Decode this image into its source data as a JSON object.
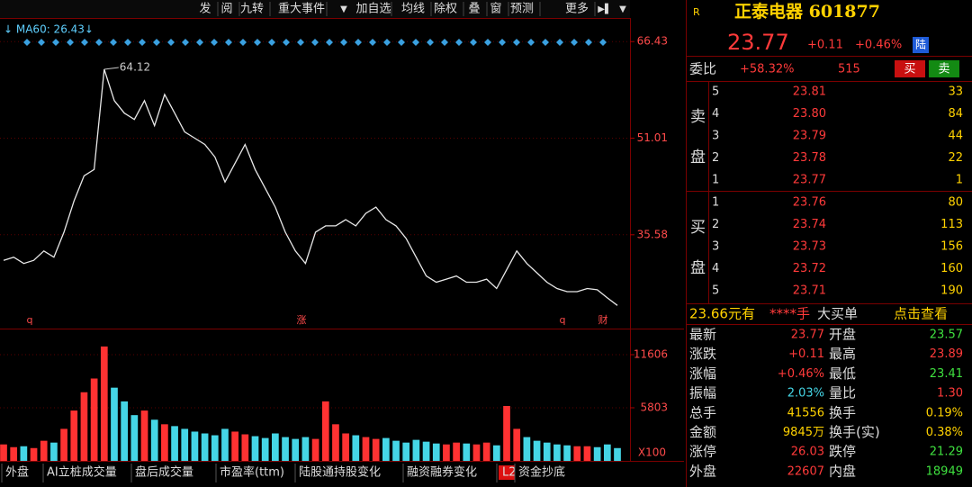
{
  "toolbar": [
    "发",
    "阅",
    "九转",
    "重大事件",
    "加自选",
    "均线",
    "除权",
    "叠",
    "窗",
    "预测",
    "更多"
  ],
  "price_chart": {
    "ma_label": "↓ MA60: 26.43↓",
    "max_label": "64.12",
    "ylim": [
      20.6,
      70.2
    ],
    "yticks": [
      35.58,
      51.01,
      66.43
    ],
    "values": [
      31.5,
      32,
      31,
      31.5,
      33,
      32,
      36,
      41,
      45,
      46,
      62,
      57,
      55,
      54,
      57,
      53,
      58,
      55,
      52,
      51,
      50,
      48,
      44,
      47,
      50,
      46,
      43,
      40,
      36,
      33,
      31,
      36,
      37,
      37,
      38,
      37,
      39,
      40,
      38,
      37,
      35,
      32,
      29,
      28,
      28.5,
      29,
      28,
      28,
      28.5,
      27,
      30,
      33,
      31,
      29.5,
      28,
      27,
      26.5,
      26.5,
      27,
      26.8,
      25.5,
      24.3
    ],
    "markers": [
      "q",
      "涨",
      "q",
      "财"
    ]
  },
  "volume_chart": {
    "unit": "X100",
    "ylim": [
      0,
      13966
    ],
    "yticks": [
      5803,
      11606
    ],
    "values": [
      1800,
      1500,
      1600,
      1400,
      2200,
      2000,
      3500,
      5500,
      7500,
      9000,
      12500,
      8000,
      6500,
      5000,
      5500,
      4500,
      4000,
      3800,
      3500,
      3200,
      3000,
      2800,
      3500,
      3200,
      2900,
      2700,
      2500,
      3000,
      2600,
      2400,
      2600,
      2400,
      6500,
      4000,
      3000,
      2800,
      2600,
      2400,
      2500,
      2200,
      2000,
      2300,
      2100,
      1900,
      1800,
      2000,
      1900,
      1800,
      2000,
      1700,
      6000,
      3500,
      2600,
      2200,
      2000,
      1800,
      1700,
      1600,
      1600,
      1500,
      1800,
      1400
    ]
  },
  "tabs": [
    "外盘",
    "AI立桩成交量",
    "盘后成交量",
    "市盈率(ttm)",
    "陆股通持股变化",
    "融资融券变化",
    "L2",
    "资金抄底"
  ],
  "quote": {
    "badge": "R",
    "name": "正泰电器 601877",
    "price": "23.77",
    "change": "+0.11",
    "pct": "+0.46%",
    "market": "陆",
    "weibi_label": "委比",
    "weibi": "+58.32%",
    "weicha": "515",
    "buy": "买",
    "sell": "卖"
  },
  "order_book": {
    "sell_label": [
      "卖",
      "盘"
    ],
    "buy_label": [
      "买",
      "盘"
    ],
    "sell": [
      {
        "level": "5",
        "price": "23.81",
        "volume": "33"
      },
      {
        "level": "4",
        "price": "23.80",
        "volume": "84"
      },
      {
        "level": "3",
        "price": "23.79",
        "volume": "44"
      },
      {
        "level": "2",
        "price": "23.78",
        "volume": "22"
      },
      {
        "level": "1",
        "price": "23.77",
        "volume": "1"
      }
    ],
    "buy": [
      {
        "level": "1",
        "price": "23.76",
        "volume": "80"
      },
      {
        "level": "2",
        "price": "23.74",
        "volume": "113"
      },
      {
        "level": "3",
        "price": "23.73",
        "volume": "156"
      },
      {
        "level": "4",
        "price": "23.72",
        "volume": "160"
      },
      {
        "level": "5",
        "price": "23.71",
        "volume": "190"
      }
    ]
  },
  "big_order": [
    "23.66元有",
    "****手",
    "大买单",
    "点击查看"
  ],
  "stats": [
    [
      "最新",
      "23.77",
      "开盘",
      "23.57"
    ],
    [
      "涨跌",
      "+0.11",
      "最高",
      "23.89"
    ],
    [
      "涨幅",
      "+0.46%",
      "最低",
      "23.41"
    ],
    [
      "振幅",
      "2.03%",
      "量比",
      "1.30"
    ],
    [
      "总手",
      "41556",
      "换手",
      "0.19%"
    ],
    [
      "金额",
      "9845万",
      "换手(实)",
      "0.38%"
    ],
    [
      "涨停",
      "26.03",
      "跌停",
      "21.29"
    ],
    [
      "外盘",
      "22607",
      "内盘",
      "18949"
    ]
  ]
}
